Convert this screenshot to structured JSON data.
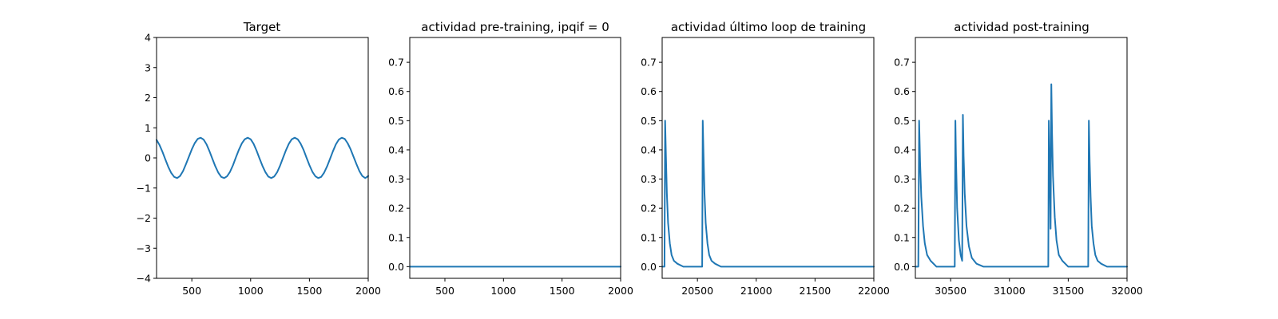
{
  "chart_data": [
    {
      "type": "line",
      "title": "Target",
      "xlabel": "",
      "ylabel": "",
      "xlim": [
        200,
        2000
      ],
      "ylim": [
        -4,
        4
      ],
      "xticks": [
        500,
        1000,
        1500,
        2000
      ],
      "xtick_labels": [
        "500",
        "1000",
        "1500",
        "2000"
      ],
      "yticks": [
        -4,
        -3,
        -2,
        -1,
        0,
        1,
        2,
        3,
        4
      ],
      "ytick_labels": [
        "−4",
        "−3",
        "−2",
        "−1",
        "0",
        "1",
        "2",
        "3",
        "4"
      ],
      "grid": false,
      "color": "#1f77b4",
      "series": [
        {
          "x": [
            200,
            225,
            250,
            275,
            300,
            325,
            350,
            375,
            400,
            425,
            450,
            475,
            500,
            525,
            550,
            575,
            600,
            625,
            650,
            675,
            700,
            725,
            750,
            775,
            800,
            825,
            850,
            875,
            900,
            925,
            950,
            975,
            1000,
            1025,
            1050,
            1075,
            1100,
            1125,
            1150,
            1175,
            1200,
            1225,
            1250,
            1275,
            1300,
            1325,
            1350,
            1375,
            1400,
            1425,
            1450,
            1475,
            1500,
            1525,
            1550,
            1575,
            1600,
            1625,
            1650,
            1675,
            1700,
            1725,
            1750,
            1775,
            1800,
            1825,
            1850,
            1875,
            1900,
            1925,
            1950,
            1975,
            2000
          ],
          "y": [
            0.6,
            0.43,
            0.2,
            -0.05,
            -0.3,
            -0.5,
            -0.63,
            -0.67,
            -0.6,
            -0.44,
            -0.21,
            0.04,
            0.29,
            0.49,
            0.63,
            0.67,
            0.61,
            0.45,
            0.22,
            -0.03,
            -0.28,
            -0.49,
            -0.63,
            -0.67,
            -0.61,
            -0.46,
            -0.24,
            0.02,
            0.27,
            0.48,
            0.62,
            0.67,
            0.62,
            0.47,
            0.25,
            -0.01,
            -0.26,
            -0.47,
            -0.62,
            -0.67,
            -0.62,
            -0.48,
            -0.26,
            0,
            0.25,
            0.47,
            0.62,
            0.67,
            0.62,
            0.48,
            0.27,
            0.01,
            -0.24,
            -0.46,
            -0.61,
            -0.67,
            -0.63,
            -0.49,
            -0.28,
            -0.03,
            0.22,
            0.45,
            0.61,
            0.67,
            0.63,
            0.49,
            0.29,
            0.04,
            -0.21,
            -0.44,
            -0.6,
            -0.67,
            -0.6
          ]
        }
      ]
    },
    {
      "type": "line",
      "title": "actividad pre-training, ipqif = 0",
      "xlabel": "",
      "ylabel": "",
      "xlim": [
        200,
        2000
      ],
      "ylim": [
        -0.04,
        0.785
      ],
      "xticks": [
        500,
        1000,
        1500,
        2000
      ],
      "xtick_labels": [
        "500",
        "1000",
        "1500",
        "2000"
      ],
      "yticks": [
        0,
        0.1,
        0.2,
        0.3,
        0.4,
        0.5,
        0.6,
        0.7
      ],
      "ytick_labels": [
        "0.0",
        "0.1",
        "0.2",
        "0.3",
        "0.4",
        "0.5",
        "0.6",
        "0.7"
      ],
      "grid": false,
      "color": "#1f77b4",
      "series": [
        {
          "x": [
            200,
            2000
          ],
          "y": [
            0,
            0
          ]
        }
      ]
    },
    {
      "type": "line",
      "title": "actividad último loop de training",
      "xlabel": "",
      "ylabel": "",
      "xlim": [
        20200,
        22000
      ],
      "ylim": [
        -0.04,
        0.785
      ],
      "xticks": [
        20500,
        21000,
        21500,
        22000
      ],
      "xtick_labels": [
        "20500",
        "21000",
        "21500",
        "22000"
      ],
      "yticks": [
        0,
        0.1,
        0.2,
        0.3,
        0.4,
        0.5,
        0.6,
        0.7
      ],
      "ytick_labels": [
        "0.0",
        "0.1",
        "0.2",
        "0.3",
        "0.4",
        "0.5",
        "0.6",
        "0.7"
      ],
      "grid": false,
      "color": "#1f77b4",
      "series": [
        {
          "x": [
            20200,
            20220,
            20225,
            20232,
            20240,
            20250,
            20265,
            20280,
            20300,
            20330,
            20380,
            20540,
            20545,
            20552,
            20560,
            20570,
            20585,
            20600,
            20620,
            20650,
            20700,
            22000
          ],
          "y": [
            0,
            0,
            0.5,
            0.38,
            0.25,
            0.15,
            0.08,
            0.04,
            0.02,
            0.01,
            0,
            0,
            0.5,
            0.38,
            0.25,
            0.15,
            0.08,
            0.04,
            0.02,
            0.01,
            0,
            0
          ]
        }
      ]
    },
    {
      "type": "line",
      "title": "actividad post-training",
      "xlabel": "",
      "ylabel": "",
      "xlim": [
        30200,
        32000
      ],
      "ylim": [
        -0.04,
        0.785
      ],
      "xticks": [
        30500,
        31000,
        31500,
        32000
      ],
      "xtick_labels": [
        "30500",
        "31000",
        "31500",
        "32000"
      ],
      "yticks": [
        0,
        0.1,
        0.2,
        0.3,
        0.4,
        0.5,
        0.6,
        0.7
      ],
      "ytick_labels": [
        "0.0",
        "0.1",
        "0.2",
        "0.3",
        "0.4",
        "0.5",
        "0.6",
        "0.7"
      ],
      "grid": false,
      "color": "#1f77b4",
      "series": [
        {
          "x": [
            30200,
            30225,
            30232,
            30240,
            30250,
            30265,
            30280,
            30300,
            30330,
            30380,
            30535,
            30540,
            30545,
            30555,
            30570,
            30585,
            30598,
            30604,
            30610,
            30620,
            30635,
            30655,
            30680,
            30720,
            30780,
            31330,
            31335,
            31342,
            31350,
            31356,
            31362,
            31370,
            31385,
            31400,
            31420,
            31450,
            31500,
            31670,
            31675,
            31682,
            31690,
            31700,
            31715,
            31730,
            31750,
            31780,
            31830,
            32000
          ],
          "y": [
            0,
            0,
            0.5,
            0.36,
            0.24,
            0.14,
            0.08,
            0.04,
            0.02,
            0,
            0,
            0.5,
            0.38,
            0.2,
            0.09,
            0.04,
            0.02,
            0.52,
            0.38,
            0.25,
            0.14,
            0.07,
            0.03,
            0.01,
            0,
            0,
            0.5,
            0.36,
            0.13,
            0.625,
            0.46,
            0.31,
            0.17,
            0.09,
            0.04,
            0.02,
            0,
            0,
            0.5,
            0.36,
            0.24,
            0.14,
            0.08,
            0.04,
            0.02,
            0.01,
            0,
            0
          ]
        }
      ]
    }
  ]
}
